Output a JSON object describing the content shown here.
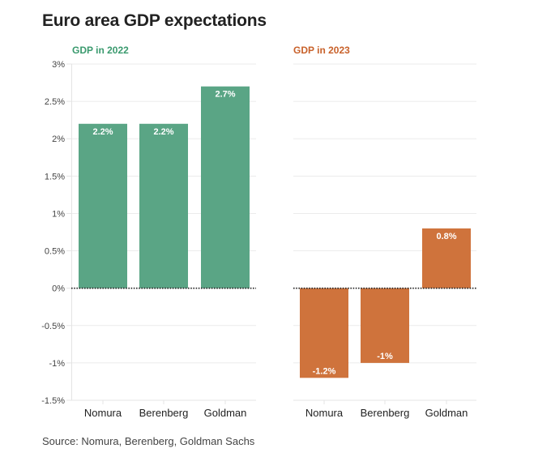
{
  "title": "Euro area GDP expectations",
  "source": "Source: Nomura, Berenberg, Goldman Sachs",
  "chart_data": [
    {
      "type": "bar",
      "title": "GDP in 2022",
      "title_color": "#3a9a6e",
      "bar_color": "#5aa585",
      "categories": [
        "Nomura",
        "Berenberg",
        "Goldman"
      ],
      "values": [
        2.2,
        2.2,
        2.7
      ],
      "data_labels": [
        "2.2%",
        "2.2%",
        "2.7%"
      ],
      "ylim": [
        -1.5,
        3
      ],
      "yticks": [
        3,
        2.5,
        2,
        1.5,
        1,
        0.5,
        0,
        -0.5,
        -1,
        -1.5
      ],
      "ytick_labels": [
        "3%",
        "2.5%",
        "2%",
        "1.5%",
        "1%",
        "0.5%",
        "0%",
        "-0.5%",
        "-1%",
        "-1.5%"
      ],
      "xlabel": "",
      "ylabel": "",
      "grid": true
    },
    {
      "type": "bar",
      "title": "GDP in 2023",
      "title_color": "#c8612a",
      "bar_color": "#cf733c",
      "categories": [
        "Nomura",
        "Berenberg",
        "Goldman"
      ],
      "values": [
        -1.2,
        -1,
        0.8
      ],
      "data_labels": [
        "-1.2%",
        "-1%",
        "0.8%"
      ],
      "ylim": [
        -1.5,
        3
      ],
      "xlabel": "",
      "ylabel": "",
      "grid": true
    }
  ]
}
